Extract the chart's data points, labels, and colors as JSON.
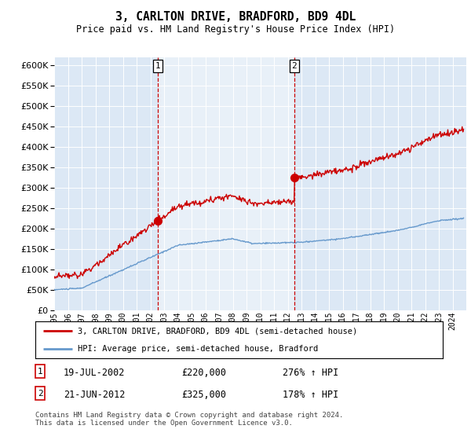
{
  "title": "3, CARLTON DRIVE, BRADFORD, BD9 4DL",
  "subtitle": "Price paid vs. HM Land Registry's House Price Index (HPI)",
  "legend_line1": "3, CARLTON DRIVE, BRADFORD, BD9 4DL (semi-detached house)",
  "legend_line2": "HPI: Average price, semi-detached house, Bradford",
  "footnote": "Contains HM Land Registry data © Crown copyright and database right 2024.\nThis data is licensed under the Open Government Licence v3.0.",
  "sale1_date": "19-JUL-2002",
  "sale1_price": 220000,
  "sale1_label": "276% ↑ HPI",
  "sale2_date": "21-JUN-2012",
  "sale2_price": 325000,
  "sale2_label": "178% ↑ HPI",
  "sale1_x": 2002.54,
  "sale2_x": 2012.47,
  "red_color": "#cc0000",
  "blue_color": "#6699cc",
  "shade_color": "#dce8f5",
  "bg_color": "#dce8f5",
  "ylim_min": 0,
  "ylim_max": 620000,
  "xlim_min": 1995.0,
  "xlim_max": 2025.0
}
